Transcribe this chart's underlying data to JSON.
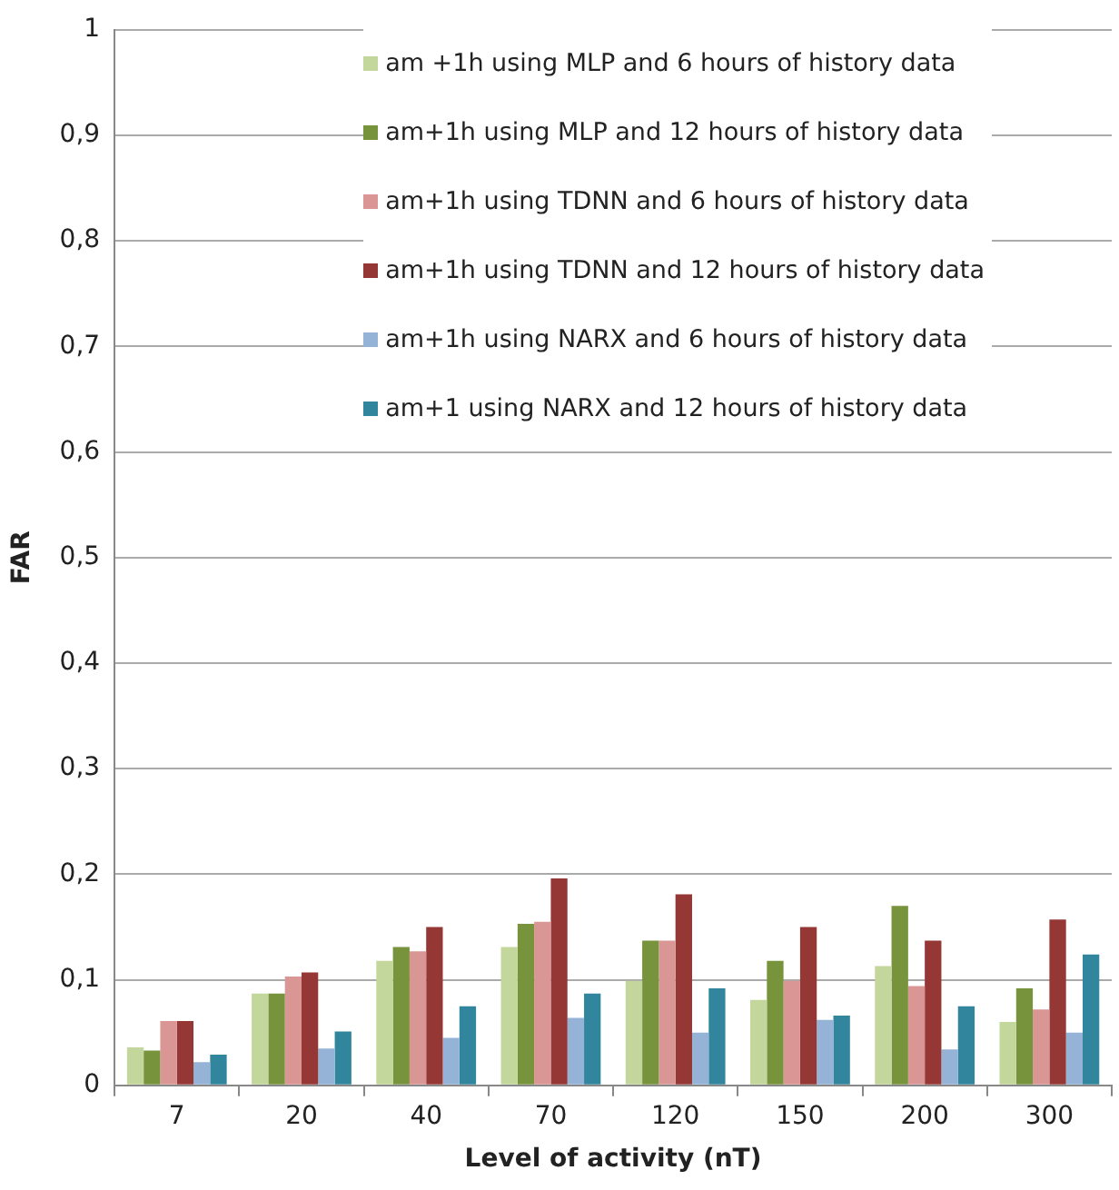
{
  "chart_data": {
    "type": "bar",
    "xlabel": "Level of activity (nT)",
    "ylabel": "FAR",
    "categories": [
      "7",
      "20",
      "40",
      "70",
      "120",
      "150",
      "200",
      "300"
    ],
    "series": [
      {
        "name": "am +1h using MLP and 6 hours of history data",
        "color": "#c3d69b",
        "values": [
          0.036,
          0.087,
          0.118,
          0.131,
          0.099,
          0.081,
          0.113,
          0.06
        ]
      },
      {
        "name": "am+1h using MLP and 12 hours of history data",
        "color": "#77933c",
        "values": [
          0.033,
          0.087,
          0.131,
          0.153,
          0.137,
          0.118,
          0.17,
          0.092
        ]
      },
      {
        "name": "am+1h using TDNN and 6 hours of history data",
        "color": "#d99694",
        "values": [
          0.061,
          0.103,
          0.127,
          0.155,
          0.137,
          0.099,
          0.094,
          0.072
        ]
      },
      {
        "name": "am+1h using TDNN and 12 hours of history data",
        "color": "#953735",
        "values": [
          0.061,
          0.107,
          0.15,
          0.196,
          0.181,
          0.15,
          0.137,
          0.157
        ]
      },
      {
        "name": "am+1h using NARX and 6 hours of history data",
        "color": "#95b3d7",
        "values": [
          0.022,
          0.035,
          0.045,
          0.064,
          0.05,
          0.062,
          0.034,
          0.05
        ]
      },
      {
        "name": "am+1 using NARX and 12 hours of history data",
        "color": "#31859c",
        "values": [
          0.029,
          0.051,
          0.075,
          0.087,
          0.092,
          0.066,
          0.075,
          0.124
        ]
      }
    ],
    "ylim": [
      0,
      1
    ],
    "yticks": [
      0,
      {
        "value": 0.1,
        "label": "0,1"
      },
      {
        "value": 0.2,
        "label": "0,2"
      },
      {
        "value": 0.3,
        "label": "0,3"
      },
      {
        "value": 0.4,
        "label": "0,4"
      },
      {
        "value": 0.5,
        "label": "0,5"
      },
      {
        "value": 0.6,
        "label": "0,6"
      },
      {
        "value": 0.7,
        "label": "0,7"
      },
      {
        "value": 0.8,
        "label": "0,8"
      },
      {
        "value": 0.9,
        "label": "0,9"
      },
      1
    ],
    "grid": "y",
    "legend": "top right"
  }
}
